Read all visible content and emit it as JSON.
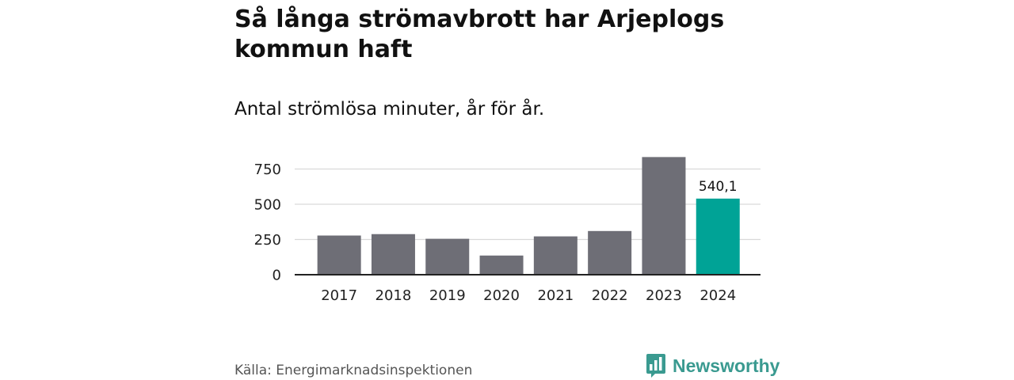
{
  "title": "Så långa strömavbrott har Arjeplogs kommun haft",
  "subtitle": "Antal strömlösa minuter, år för år.",
  "source": "Källa: Energimarknadsinspektionen",
  "brand": {
    "name": "Newsworthy",
    "icon": "bar-chart-speech-bubble-icon",
    "color": "#3a9a90"
  },
  "colors": {
    "bar": "#6e6e76",
    "highlight": "#00a396",
    "grid": "#d9d9d9",
    "axis": "#222222"
  },
  "chart_data": {
    "type": "bar",
    "title": "Så långa strömavbrott har Arjeplogs kommun haft",
    "subtitle": "Antal strömlösa minuter, år för år.",
    "xlabel": "",
    "ylabel": "",
    "categories": [
      "2017",
      "2018",
      "2019",
      "2020",
      "2021",
      "2022",
      "2023",
      "2024"
    ],
    "values": [
      278,
      288,
      255,
      136,
      272,
      310,
      835,
      540.1
    ],
    "highlight_index": 7,
    "data_labels": [
      {
        "index": 7,
        "text": "540,1"
      }
    ],
    "ylim": [
      0,
      900
    ],
    "yticks": [
      0,
      250,
      500,
      750
    ],
    "ytick_labels": [
      "0",
      "250",
      "500",
      "750"
    ],
    "grid": true,
    "legend": "none"
  }
}
